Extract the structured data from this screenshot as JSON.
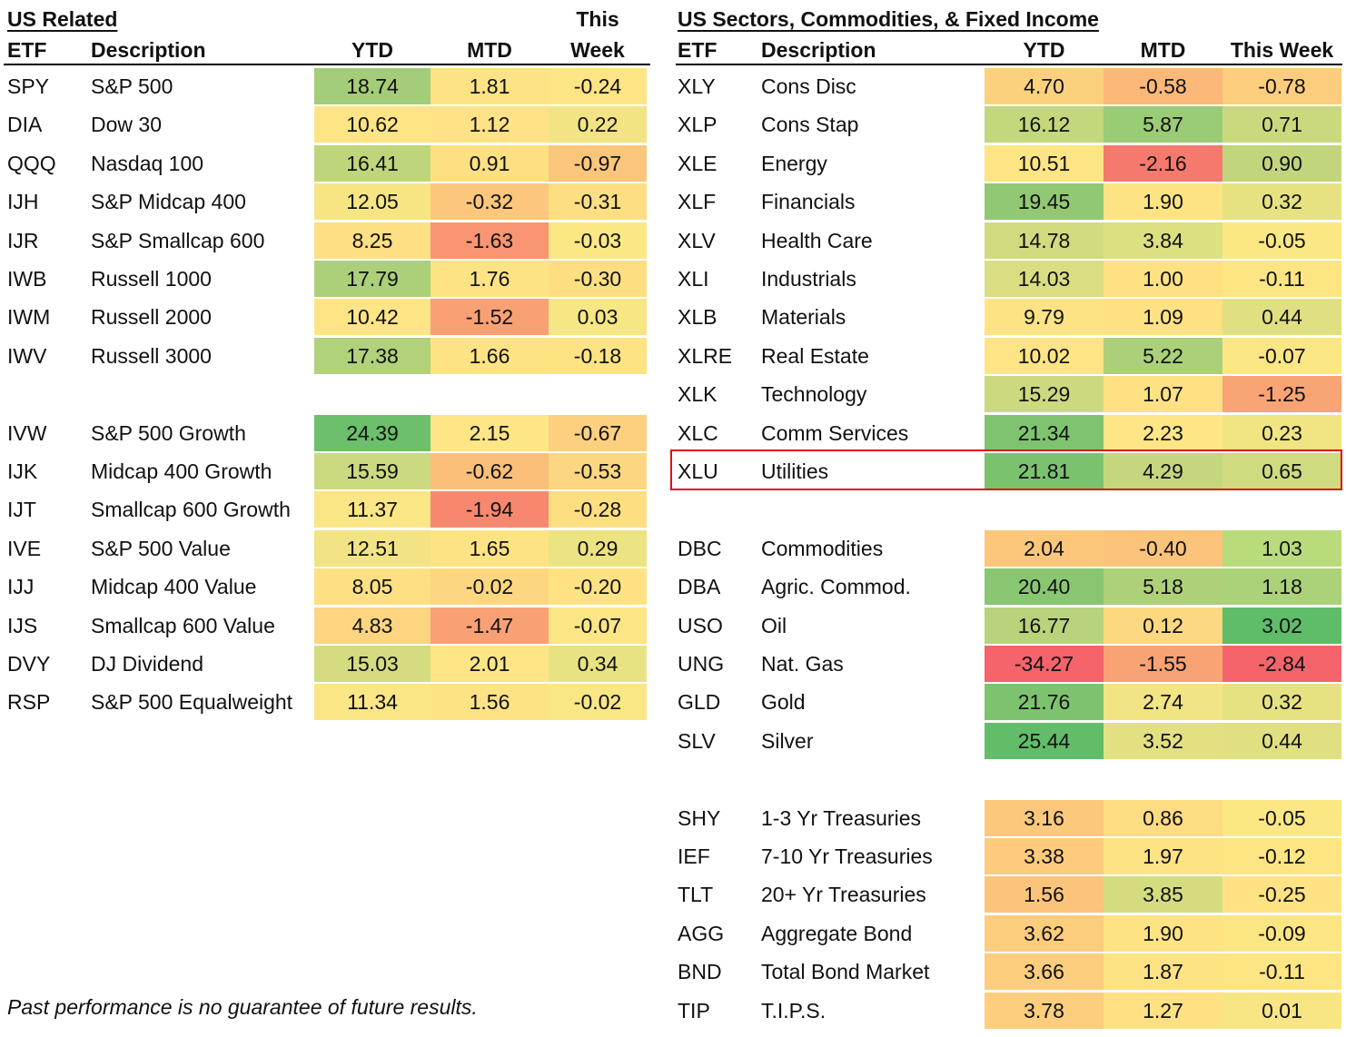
{
  "left": {
    "title": "US Related",
    "headers": {
      "etf": "ETF",
      "desc": "Description",
      "ytd": "YTD",
      "mtd": "MTD",
      "week_line1": "This",
      "week_line2": "Week"
    },
    "groups": [
      [
        {
          "etf": "SPY",
          "desc": "S&P 500",
          "ytd": "18.74",
          "mtd": "1.81",
          "week": "-0.24",
          "colors": [
            "#a3cd78",
            "#fee386",
            "#fde485"
          ]
        },
        {
          "etf": "DIA",
          "desc": "Dow 30",
          "ytd": "10.62",
          "mtd": "1.12",
          "week": "0.22",
          "colors": [
            "#fde485",
            "#fee285",
            "#f2e483"
          ]
        },
        {
          "etf": "QQQ",
          "desc": "Nasdaq 100",
          "ytd": "16.41",
          "mtd": "0.91",
          "week": "-0.97",
          "colors": [
            "#bfd57c",
            "#fee082",
            "#fbc67b"
          ]
        },
        {
          "etf": "IJH",
          "desc": "S&P Midcap 400",
          "ytd": "12.05",
          "mtd": "-0.32",
          "week": "-0.31",
          "colors": [
            "#f7e584",
            "#fcc77c",
            "#fdde82"
          ]
        },
        {
          "etf": "IJR",
          "desc": "S&P Smallcap 600",
          "ytd": "8.25",
          "mtd": "-1.63",
          "week": "-0.03",
          "colors": [
            "#fedf83",
            "#f99572",
            "#fbe884"
          ]
        },
        {
          "etf": "IWB",
          "desc": "Russell 1000",
          "ytd": "17.79",
          "mtd": "1.76",
          "week": "-0.30",
          "colors": [
            "#acd079",
            "#fee384",
            "#fddf82"
          ]
        },
        {
          "etf": "IWM",
          "desc": "Russell 2000",
          "ytd": "10.42",
          "mtd": "-1.52",
          "week": "0.03",
          "colors": [
            "#fde485",
            "#f9a074",
            "#f6e684"
          ]
        },
        {
          "etf": "IWV",
          "desc": "Russell 3000",
          "ytd": "17.38",
          "mtd": "1.66",
          "week": "-0.18",
          "colors": [
            "#b1d17a",
            "#fee384",
            "#fee383"
          ]
        }
      ],
      [
        {
          "etf": "IVW",
          "desc": "S&P 500 Growth",
          "ytd": "24.39",
          "mtd": "2.15",
          "week": "-0.67",
          "colors": [
            "#6cbf6b",
            "#fee586",
            "#fcd07e"
          ]
        },
        {
          "etf": "IJK",
          "desc": "Midcap 400 Growth",
          "ytd": "15.59",
          "mtd": "-0.62",
          "week": "-0.53",
          "colors": [
            "#cbd980",
            "#fbbf79",
            "#fcd680"
          ]
        },
        {
          "etf": "IJT",
          "desc": "Smallcap 600 Growth",
          "ytd": "11.37",
          "mtd": "-1.94",
          "week": "-0.28",
          "colors": [
            "#fbe685",
            "#f7886f",
            "#fddf82"
          ]
        },
        {
          "etf": "IVE",
          "desc": "S&P 500 Value",
          "ytd": "12.51",
          "mtd": "1.65",
          "week": "0.29",
          "colors": [
            "#f2e484",
            "#fee384",
            "#ece482"
          ]
        },
        {
          "etf": "IJJ",
          "desc": "Midcap 400 Value",
          "ytd": "8.05",
          "mtd": "-0.02",
          "week": "-0.20",
          "colors": [
            "#fedf83",
            "#fdd780",
            "#fee283"
          ]
        },
        {
          "etf": "IJS",
          "desc": "Smallcap 600 Value",
          "ytd": "4.83",
          "mtd": "-1.47",
          "week": "-0.07",
          "colors": [
            "#fdd47f",
            "#f9a175",
            "#fce584"
          ]
        },
        {
          "etf": "DVY",
          "desc": "DJ Dividend",
          "ytd": "15.03",
          "mtd": "2.01",
          "week": "0.34",
          "colors": [
            "#d5db81",
            "#fee586",
            "#e7e382"
          ]
        },
        {
          "etf": "RSP",
          "desc": "S&P 500 Equalweight",
          "ytd": "11.34",
          "mtd": "1.56",
          "week": "-0.02",
          "colors": [
            "#fbe685",
            "#fee384",
            "#f9e684"
          ]
        }
      ]
    ]
  },
  "right": {
    "title": "US Sectors, Commodities, & Fixed Income",
    "headers": {
      "etf": "ETF",
      "desc": "Description",
      "ytd": "YTD",
      "mtd": "MTD",
      "week": "This Week"
    },
    "groups": [
      [
        {
          "etf": "XLY",
          "desc": "Cons Disc",
          "ytd": "4.70",
          "mtd": "-0.58",
          "week": "-0.78",
          "colors": [
            "#fcd17e",
            "#fbb878",
            "#fccd7d"
          ]
        },
        {
          "etf": "XLP",
          "desc": "Cons Stap",
          "ytd": "16.12",
          "mtd": "5.87",
          "week": "0.71",
          "colors": [
            "#c3d77d",
            "#9acb75",
            "#cbd97e"
          ]
        },
        {
          "etf": "XLE",
          "desc": "Energy",
          "ytd": "10.51",
          "mtd": "-2.16",
          "week": "0.90",
          "colors": [
            "#fde485",
            "#f5796d",
            "#c0d57c"
          ]
        },
        {
          "etf": "XLF",
          "desc": "Financials",
          "ytd": "19.45",
          "mtd": "1.90",
          "week": "0.32",
          "colors": [
            "#92c873",
            "#fee385",
            "#e6e282"
          ]
        },
        {
          "etf": "XLV",
          "desc": "Health Care",
          "ytd": "14.78",
          "mtd": "3.84",
          "week": "-0.05",
          "colors": [
            "#d2da80",
            "#dce081",
            "#fbe784"
          ]
        },
        {
          "etf": "XLI",
          "desc": "Industrials",
          "ytd": "14.03",
          "mtd": "1.00",
          "week": "-0.11",
          "colors": [
            "#dadd81",
            "#fee183",
            "#fde584"
          ]
        },
        {
          "etf": "XLB",
          "desc": "Materials",
          "ytd": "9.79",
          "mtd": "1.09",
          "week": "0.44",
          "colors": [
            "#fee384",
            "#fee183",
            "#e0df81"
          ]
        },
        {
          "etf": "XLRE",
          "desc": "Real Estate",
          "ytd": "10.02",
          "mtd": "5.22",
          "week": "-0.07",
          "colors": [
            "#fee484",
            "#abd079",
            "#fbe684"
          ]
        },
        {
          "etf": "XLK",
          "desc": "Technology",
          "ytd": "15.29",
          "mtd": "1.07",
          "week": "-1.25",
          "colors": [
            "#cdd97f",
            "#fee183",
            "#f9a474"
          ]
        },
        {
          "etf": "XLC",
          "desc": "Comm Services",
          "ytd": "21.34",
          "mtd": "2.23",
          "week": "0.23",
          "colors": [
            "#7fc370",
            "#fee586",
            "#f0e483"
          ]
        },
        {
          "etf": "XLU",
          "desc": "Utilities",
          "ytd": "21.81",
          "mtd": "4.29",
          "week": "0.65",
          "colors": [
            "#7ac26e",
            "#c5d77e",
            "#d0da7f"
          ]
        }
      ],
      [
        {
          "etf": "DBC",
          "desc": "Commodities",
          "ytd": "2.04",
          "mtd": "-0.40",
          "week": "1.03",
          "colors": [
            "#fcc67b",
            "#fcc37b",
            "#badb7c"
          ]
        },
        {
          "etf": "DBA",
          "desc": "Agric. Commod.",
          "ytd": "20.40",
          "mtd": "5.18",
          "week": "1.18",
          "colors": [
            "#88c672",
            "#add079",
            "#abd179"
          ]
        },
        {
          "etf": "USO",
          "desc": "Oil",
          "ytd": "16.77",
          "mtd": "0.12",
          "week": "3.02",
          "colors": [
            "#b8d37b",
            "#fcd880",
            "#5fbc69"
          ]
        },
        {
          "etf": "UNG",
          "desc": "Nat. Gas",
          "ytd": "-34.27",
          "mtd": "-1.55",
          "week": "-2.84",
          "colors": [
            "#f5636b",
            "#f9a274",
            "#f5646b"
          ]
        },
        {
          "etf": "GLD",
          "desc": "Gold",
          "ytd": "21.76",
          "mtd": "2.74",
          "week": "0.32",
          "colors": [
            "#7dc36f",
            "#f0e484",
            "#e6e282"
          ]
        },
        {
          "etf": "SLV",
          "desc": "Silver",
          "ytd": "25.44",
          "mtd": "3.52",
          "week": "0.44",
          "colors": [
            "#62bd69",
            "#e3e082",
            "#e0df81"
          ]
        }
      ],
      [
        {
          "etf": "SHY",
          "desc": "1-3 Yr Treasuries",
          "ytd": "3.16",
          "mtd": "0.86",
          "week": "-0.05",
          "colors": [
            "#fcc97c",
            "#fedc82",
            "#fbe784"
          ]
        },
        {
          "etf": "IEF",
          "desc": "7-10 Yr Treasuries",
          "ytd": "3.38",
          "mtd": "1.97",
          "week": "-0.12",
          "colors": [
            "#fccb7d",
            "#fee385",
            "#fde584"
          ]
        },
        {
          "etf": "TLT",
          "desc": "20+ Yr Treasuries",
          "ytd": "1.56",
          "mtd": "3.85",
          "week": "-0.25",
          "colors": [
            "#fcc47b",
            "#d5dc80",
            "#fee283"
          ]
        },
        {
          "etf": "AGG",
          "desc": "Aggregate Bond",
          "ytd": "3.62",
          "mtd": "1.90",
          "week": "-0.09",
          "colors": [
            "#fccd7d",
            "#fee385",
            "#fce684"
          ]
        },
        {
          "etf": "BND",
          "desc": "Total Bond Market",
          "ytd": "3.66",
          "mtd": "1.87",
          "week": "-0.11",
          "colors": [
            "#fccd7d",
            "#fee385",
            "#fde584"
          ]
        },
        {
          "etf": "TIP",
          "desc": "T.I.P.S.",
          "ytd": "3.78",
          "mtd": "1.27",
          "week": "0.01",
          "colors": [
            "#fcce7d",
            "#fee183",
            "#f8e684"
          ]
        }
      ]
    ]
  },
  "footnote": "Past performance is no guarantee of future results."
}
